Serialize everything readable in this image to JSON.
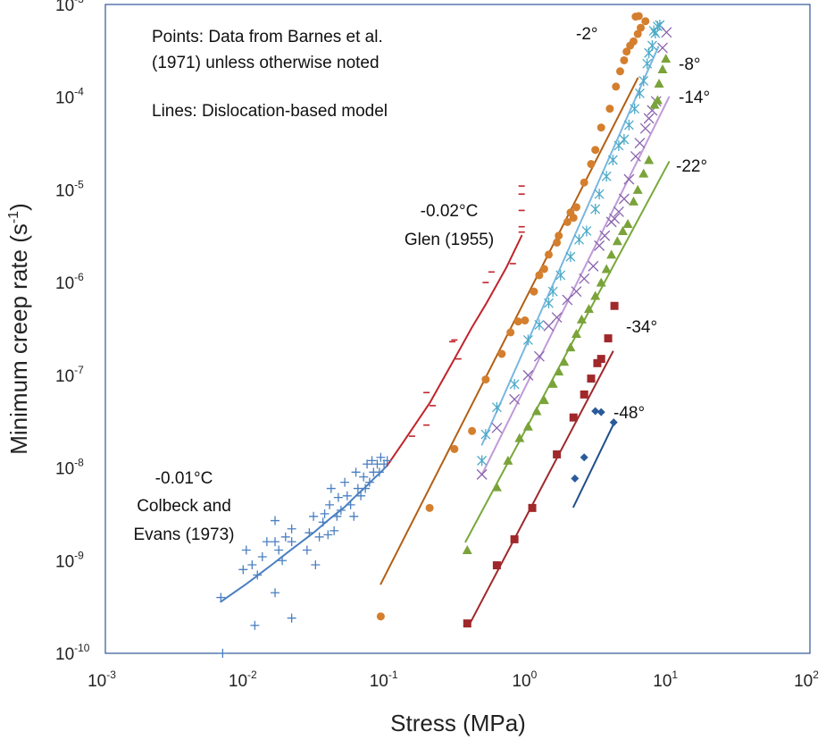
{
  "chart_data": {
    "type": "scatter",
    "xlabel": "Stress (MPa)",
    "ylabel_main": "Minimum creep rate (s",
    "ylabel_sup": "-1",
    "ylabel_end": ")",
    "x_scale": "log",
    "y_scale": "log",
    "xlim": [
      0.001,
      100
    ],
    "ylim": [
      1e-10,
      0.001
    ],
    "grid": false,
    "x_ticks": [
      {
        "base": "10",
        "exp": "-3",
        "value": 0.001
      },
      {
        "base": "10",
        "exp": "-2",
        "value": 0.01
      },
      {
        "base": "10",
        "exp": "-1",
        "value": 0.1
      },
      {
        "base": "10",
        "exp": "0",
        "value": 1
      },
      {
        "base": "10",
        "exp": "1",
        "value": 10
      },
      {
        "base": "10",
        "exp": "2",
        "value": 100
      }
    ],
    "y_ticks": [
      {
        "base": "10",
        "exp": "-10",
        "value": 1e-10
      },
      {
        "base": "10",
        "exp": "-9",
        "value": 1e-09
      },
      {
        "base": "10",
        "exp": "-8",
        "value": 1e-08
      },
      {
        "base": "10",
        "exp": "-7",
        "value": 1e-07
      },
      {
        "base": "10",
        "exp": "-6",
        "value": 1e-06
      },
      {
        "base": "10",
        "exp": "-5",
        "value": 1e-05
      },
      {
        "base": "10",
        "exp": "-4",
        "value": 0.0001
      },
      {
        "base": "10",
        "exp": "-3",
        "value": 0.001
      }
    ],
    "annotations": {
      "points_note_1": "Points: Data from Barnes et al.",
      "points_note_2": "(1971) unless otherwise noted",
      "lines_note": "Lines: Dislocation-based model",
      "colbeck_1": "-0.01°C",
      "colbeck_2": "Colbeck and",
      "colbeck_3": "Evans (1973)",
      "glen_1": "-0.02°C",
      "glen_2": "Glen (1955)",
      "t_m2": "-2°",
      "t_m8": "-8°",
      "t_m14": "-14°",
      "t_m22": "-22°",
      "t_m34": "-34°",
      "t_m48": "-48°"
    },
    "colors": {
      "colbeck": "#4a7fc1",
      "glen": "#c0242b",
      "m2": "#d47f2e",
      "m8": "#4eaac8",
      "m14": "#8a64ad",
      "m22": "#7aa33a",
      "m34": "#a0282a",
      "m48": "#2a5a9a",
      "line_m2": "#b35f14",
      "line_m8": "#7ab7e0",
      "line_m14": "#c09ad8",
      "line_m22": "#78a83a",
      "line_m48": "#1f4f8c"
    },
    "series": [
      {
        "key": "colbeck",
        "marker": "plus",
        "points": [
          [
            0.0066,
            4e-10
          ],
          [
            0.0068,
            1e-10
          ],
          [
            0.0095,
            8e-10
          ],
          [
            0.01,
            1.3e-09
          ],
          [
            0.011,
            9e-10
          ],
          [
            0.0115,
            2e-10
          ],
          [
            0.012,
            7e-10
          ],
          [
            0.013,
            1.1e-09
          ],
          [
            0.014,
            1.6e-09
          ],
          [
            0.016,
            4.5e-10
          ],
          [
            0.016,
            1.6e-09
          ],
          [
            0.016,
            2.7e-09
          ],
          [
            0.017,
            1.3e-09
          ],
          [
            0.018,
            1e-09
          ],
          [
            0.019,
            1.8e-09
          ],
          [
            0.021,
            2.4e-10
          ],
          [
            0.021,
            1.6e-09
          ],
          [
            0.021,
            2.2e-09
          ],
          [
            0.027,
            1.3e-09
          ],
          [
            0.028,
            2e-09
          ],
          [
            0.03,
            3e-09
          ],
          [
            0.031,
            9e-10
          ],
          [
            0.033,
            1.8e-09
          ],
          [
            0.035,
            2.6e-09
          ],
          [
            0.036,
            3.2e-09
          ],
          [
            0.038,
            1.9e-09
          ],
          [
            0.039,
            4e-09
          ],
          [
            0.04,
            6e-09
          ],
          [
            0.042,
            2.1e-09
          ],
          [
            0.044,
            3e-09
          ],
          [
            0.045,
            4.8e-09
          ],
          [
            0.047,
            3.5e-09
          ],
          [
            0.05,
            7e-09
          ],
          [
            0.052,
            5e-09
          ],
          [
            0.055,
            4e-09
          ],
          [
            0.058,
            3e-09
          ],
          [
            0.06,
            9e-09
          ],
          [
            0.062,
            6e-09
          ],
          [
            0.065,
            5e-09
          ],
          [
            0.068,
            8e-09
          ],
          [
            0.07,
            6e-09
          ],
          [
            0.072,
            1.1e-08
          ],
          [
            0.075,
            7e-09
          ],
          [
            0.078,
            1.2e-08
          ],
          [
            0.08,
            9e-09
          ],
          [
            0.085,
            1.1e-08
          ],
          [
            0.088,
            9e-09
          ],
          [
            0.09,
            1.3e-08
          ],
          [
            0.095,
            1.1e-08
          ],
          [
            0.1,
            1.2e-08
          ]
        ]
      },
      {
        "key": "glen",
        "marker": "dash",
        "points": [
          [
            0.15,
            2.2e-08
          ],
          [
            0.19,
            6.5e-08
          ],
          [
            0.19,
            2.9e-08
          ],
          [
            0.21,
            4.7e-08
          ],
          [
            0.29,
            2.3e-07
          ],
          [
            0.3,
            2.4e-07
          ],
          [
            0.32,
            1.5e-07
          ],
          [
            0.5,
            1e-06
          ],
          [
            0.55,
            1.3e-06
          ],
          [
            0.78,
            1.6e-06
          ],
          [
            0.9,
            1.1e-05
          ],
          [
            0.9,
            9e-06
          ],
          [
            0.9,
            6e-06
          ],
          [
            0.9,
            4e-06
          ],
          [
            0.9,
            3.5e-06
          ]
        ]
      },
      {
        "key": "m2",
        "marker": "circle",
        "points": [
          [
            0.09,
            2.5e-10
          ],
          [
            0.2,
            3.7e-09
          ],
          [
            0.3,
            1.6e-08
          ],
          [
            0.4,
            2.5e-08
          ],
          [
            0.5,
            9e-08
          ],
          [
            0.65,
            1.7e-07
          ],
          [
            0.75,
            2.9e-07
          ],
          [
            0.85,
            3.8e-07
          ],
          [
            0.95,
            3.9e-07
          ],
          [
            1.1,
            8e-07
          ],
          [
            1.2,
            1.2e-06
          ],
          [
            1.3,
            1.4e-06
          ],
          [
            1.4,
            2e-06
          ],
          [
            1.6,
            2.7e-06
          ],
          [
            1.65,
            3.2e-06
          ],
          [
            1.9,
            4.5e-06
          ],
          [
            2,
            5.7e-06
          ],
          [
            2.1,
            5e-06
          ],
          [
            2.2,
            6.5e-06
          ],
          [
            2.5,
            1.2e-05
          ],
          [
            2.8,
            1.9e-05
          ],
          [
            3,
            2.7e-05
          ],
          [
            3.3,
            4.7e-05
          ],
          [
            3.8,
            7.5e-05
          ],
          [
            4.2,
            0.00013
          ],
          [
            4.5,
            0.00019
          ],
          [
            4.8,
            0.00025
          ],
          [
            5,
            0.00031
          ],
          [
            5.3,
            0.00036
          ],
          [
            5.6,
            0.0004
          ],
          [
            6,
            0.00048
          ],
          [
            6.3,
            0.00056
          ],
          [
            6.8,
            0.00066
          ],
          [
            5.8,
            0.00074
          ],
          [
            6.1,
            0.00075
          ]
        ]
      },
      {
        "key": "m8",
        "marker": "star",
        "points": [
          [
            0.47,
            1.2e-08
          ],
          [
            0.5,
            2.3e-08
          ],
          [
            0.6,
            4.5e-08
          ],
          [
            0.8,
            8e-08
          ],
          [
            1,
            2.4e-07
          ],
          [
            1.2,
            3.5e-07
          ],
          [
            1.4,
            6e-07
          ],
          [
            1.5,
            8e-07
          ],
          [
            1.7,
            1.2e-06
          ],
          [
            2,
            1.9e-06
          ],
          [
            2.3,
            2.9e-06
          ],
          [
            2.6,
            3.6e-06
          ],
          [
            3,
            6.2e-06
          ],
          [
            3.2,
            9e-06
          ],
          [
            3.6,
            1.4e-05
          ],
          [
            4,
            2.1e-05
          ],
          [
            4.4,
            3e-05
          ],
          [
            4.8,
            3.5e-05
          ],
          [
            5.2,
            5e-05
          ],
          [
            5.7,
            7.5e-05
          ],
          [
            6.2,
            0.00011
          ],
          [
            6.6,
            0.00015
          ],
          [
            7,
            0.00023
          ],
          [
            7.2,
            0.0003
          ],
          [
            7.6,
            0.00036
          ],
          [
            8,
            0.00049
          ],
          [
            8.3,
            0.00058
          ],
          [
            8.6,
            0.0006
          ],
          [
            7.8,
            0.00052
          ]
        ]
      },
      {
        "key": "m14",
        "marker": "cross",
        "points": [
          [
            0.47,
            8.5e-09
          ],
          [
            0.6,
            2.7e-08
          ],
          [
            0.8,
            5.5e-08
          ],
          [
            1,
            1e-07
          ],
          [
            1.2,
            1.6e-07
          ],
          [
            1.4,
            3.4e-07
          ],
          [
            1.6,
            4.2e-07
          ],
          [
            1.9,
            6.5e-07
          ],
          [
            2.2,
            8e-07
          ],
          [
            2.5,
            1.1e-06
          ],
          [
            2.9,
            1.5e-06
          ],
          [
            3.2,
            2.5e-06
          ],
          [
            3.5,
            3.2e-06
          ],
          [
            3.9,
            4.5e-06
          ],
          [
            4.1,
            4.9e-06
          ],
          [
            4.4,
            5.8e-06
          ],
          [
            4.8,
            8e-06
          ],
          [
            5.2,
            1.3e-05
          ],
          [
            5.8,
            2.3e-05
          ],
          [
            6.2,
            3.2e-05
          ],
          [
            6.8,
            4.6e-05
          ],
          [
            7.2,
            5.9e-05
          ],
          [
            7.6,
            7.2e-05
          ],
          [
            8.1,
            9e-05
          ],
          [
            9,
            0.00034
          ],
          [
            9.6,
            0.0005
          ]
        ]
      },
      {
        "key": "m22",
        "marker": "triangle",
        "points": [
          [
            0.37,
            1.3e-09
          ],
          [
            0.6,
            6.2e-09
          ],
          [
            0.72,
            1.2e-08
          ],
          [
            0.87,
            2.1e-08
          ],
          [
            1,
            2.8e-08
          ],
          [
            1.15,
            4.1e-08
          ],
          [
            1.3,
            5.4e-08
          ],
          [
            1.5,
            8.1e-08
          ],
          [
            1.65,
            1.1e-07
          ],
          [
            1.8,
            1.4e-07
          ],
          [
            2,
            2e-07
          ],
          [
            2.2,
            2.8e-07
          ],
          [
            2.4,
            4e-07
          ],
          [
            2.7,
            5.2e-07
          ],
          [
            3,
            7.2e-07
          ],
          [
            3.3,
            1e-06
          ],
          [
            3.6,
            1.4e-06
          ],
          [
            3.9,
            2e-06
          ],
          [
            4.3,
            2.8e-06
          ],
          [
            4.7,
            3.6e-06
          ],
          [
            5.1,
            4.3e-06
          ],
          [
            5.6,
            7.5e-06
          ],
          [
            6,
            1e-05
          ],
          [
            6.6,
            1.5e-05
          ],
          [
            7.2,
            2.1e-05
          ],
          [
            7.9,
            8.3e-05
          ],
          [
            8.3,
            9.3e-05
          ],
          [
            8.5,
            0.00014
          ],
          [
            9,
            0.0002
          ],
          [
            9.5,
            0.00026
          ]
        ]
      },
      {
        "key": "m34",
        "marker": "square",
        "points": [
          [
            0.37,
            2.1e-10
          ],
          [
            0.6,
            8.9e-10
          ],
          [
            0.8,
            1.7e-09
          ],
          [
            1.07,
            3.7e-09
          ],
          [
            1.6,
            1.4e-08
          ],
          [
            2.1,
            3.5e-08
          ],
          [
            2.5,
            6.2e-08
          ],
          [
            2.8,
            9.2e-08
          ],
          [
            3.1,
            1.35e-07
          ],
          [
            3.3,
            1.5e-07
          ],
          [
            3.7,
            2.5e-07
          ],
          [
            4.1,
            5.6e-07
          ]
        ]
      },
      {
        "key": "m48",
        "marker": "diamond",
        "points": [
          [
            2.15,
            7.7e-09
          ],
          [
            2.5,
            1.3e-08
          ],
          [
            3,
            4.1e-08
          ],
          [
            3.3,
            4e-08
          ],
          [
            4.05,
            3.1e-08
          ]
        ]
      }
    ],
    "lines": [
      {
        "key": "colbeck",
        "points": [
          [
            0.0066,
            3.6e-10
          ],
          [
            0.01,
            5.6e-10
          ],
          [
            0.015,
            8.9e-10
          ],
          [
            0.02,
            1.25e-09
          ],
          [
            0.03,
            2e-09
          ],
          [
            0.04,
            2.9e-09
          ],
          [
            0.05,
            3.8e-09
          ],
          [
            0.06,
            5e-09
          ],
          [
            0.07,
            6.2e-09
          ],
          [
            0.08,
            7.6e-09
          ],
          [
            0.09,
            9e-09
          ],
          [
            0.1,
            1.06e-08
          ]
        ]
      },
      {
        "key": "glen",
        "points": [
          [
            0.1,
            1.06e-08
          ],
          [
            0.13,
            1.9e-08
          ],
          [
            0.2,
            5e-08
          ],
          [
            0.3,
            1.5e-07
          ],
          [
            0.4,
            3.3e-07
          ],
          [
            0.5,
            5.8e-07
          ],
          [
            0.6,
            9.5e-07
          ],
          [
            0.7,
            1.45e-06
          ],
          [
            0.8,
            2.2e-06
          ],
          [
            0.9,
            3.2e-06
          ]
        ]
      },
      {
        "key": "m2",
        "points": [
          [
            0.09,
            5.6e-10
          ],
          [
            6,
            0.00016
          ]
        ]
      },
      {
        "key": "m8",
        "points": [
          [
            0.47,
            1.78e-08
          ],
          [
            8.4,
            0.00035
          ]
        ]
      },
      {
        "key": "m14",
        "points": [
          [
            0.47,
            8.5e-09
          ],
          [
            10,
            0.0001
          ]
        ]
      },
      {
        "key": "m22",
        "points": [
          [
            0.36,
            1.6e-09
          ],
          [
            10,
            2e-05
          ]
        ]
      },
      {
        "key": "m34",
        "points": [
          [
            0.38,
            2e-10
          ],
          [
            4,
            1.8e-07
          ]
        ]
      },
      {
        "key": "m48",
        "points": [
          [
            2.1,
            3.8e-09
          ],
          [
            4.05,
            3e-08
          ]
        ]
      }
    ]
  }
}
